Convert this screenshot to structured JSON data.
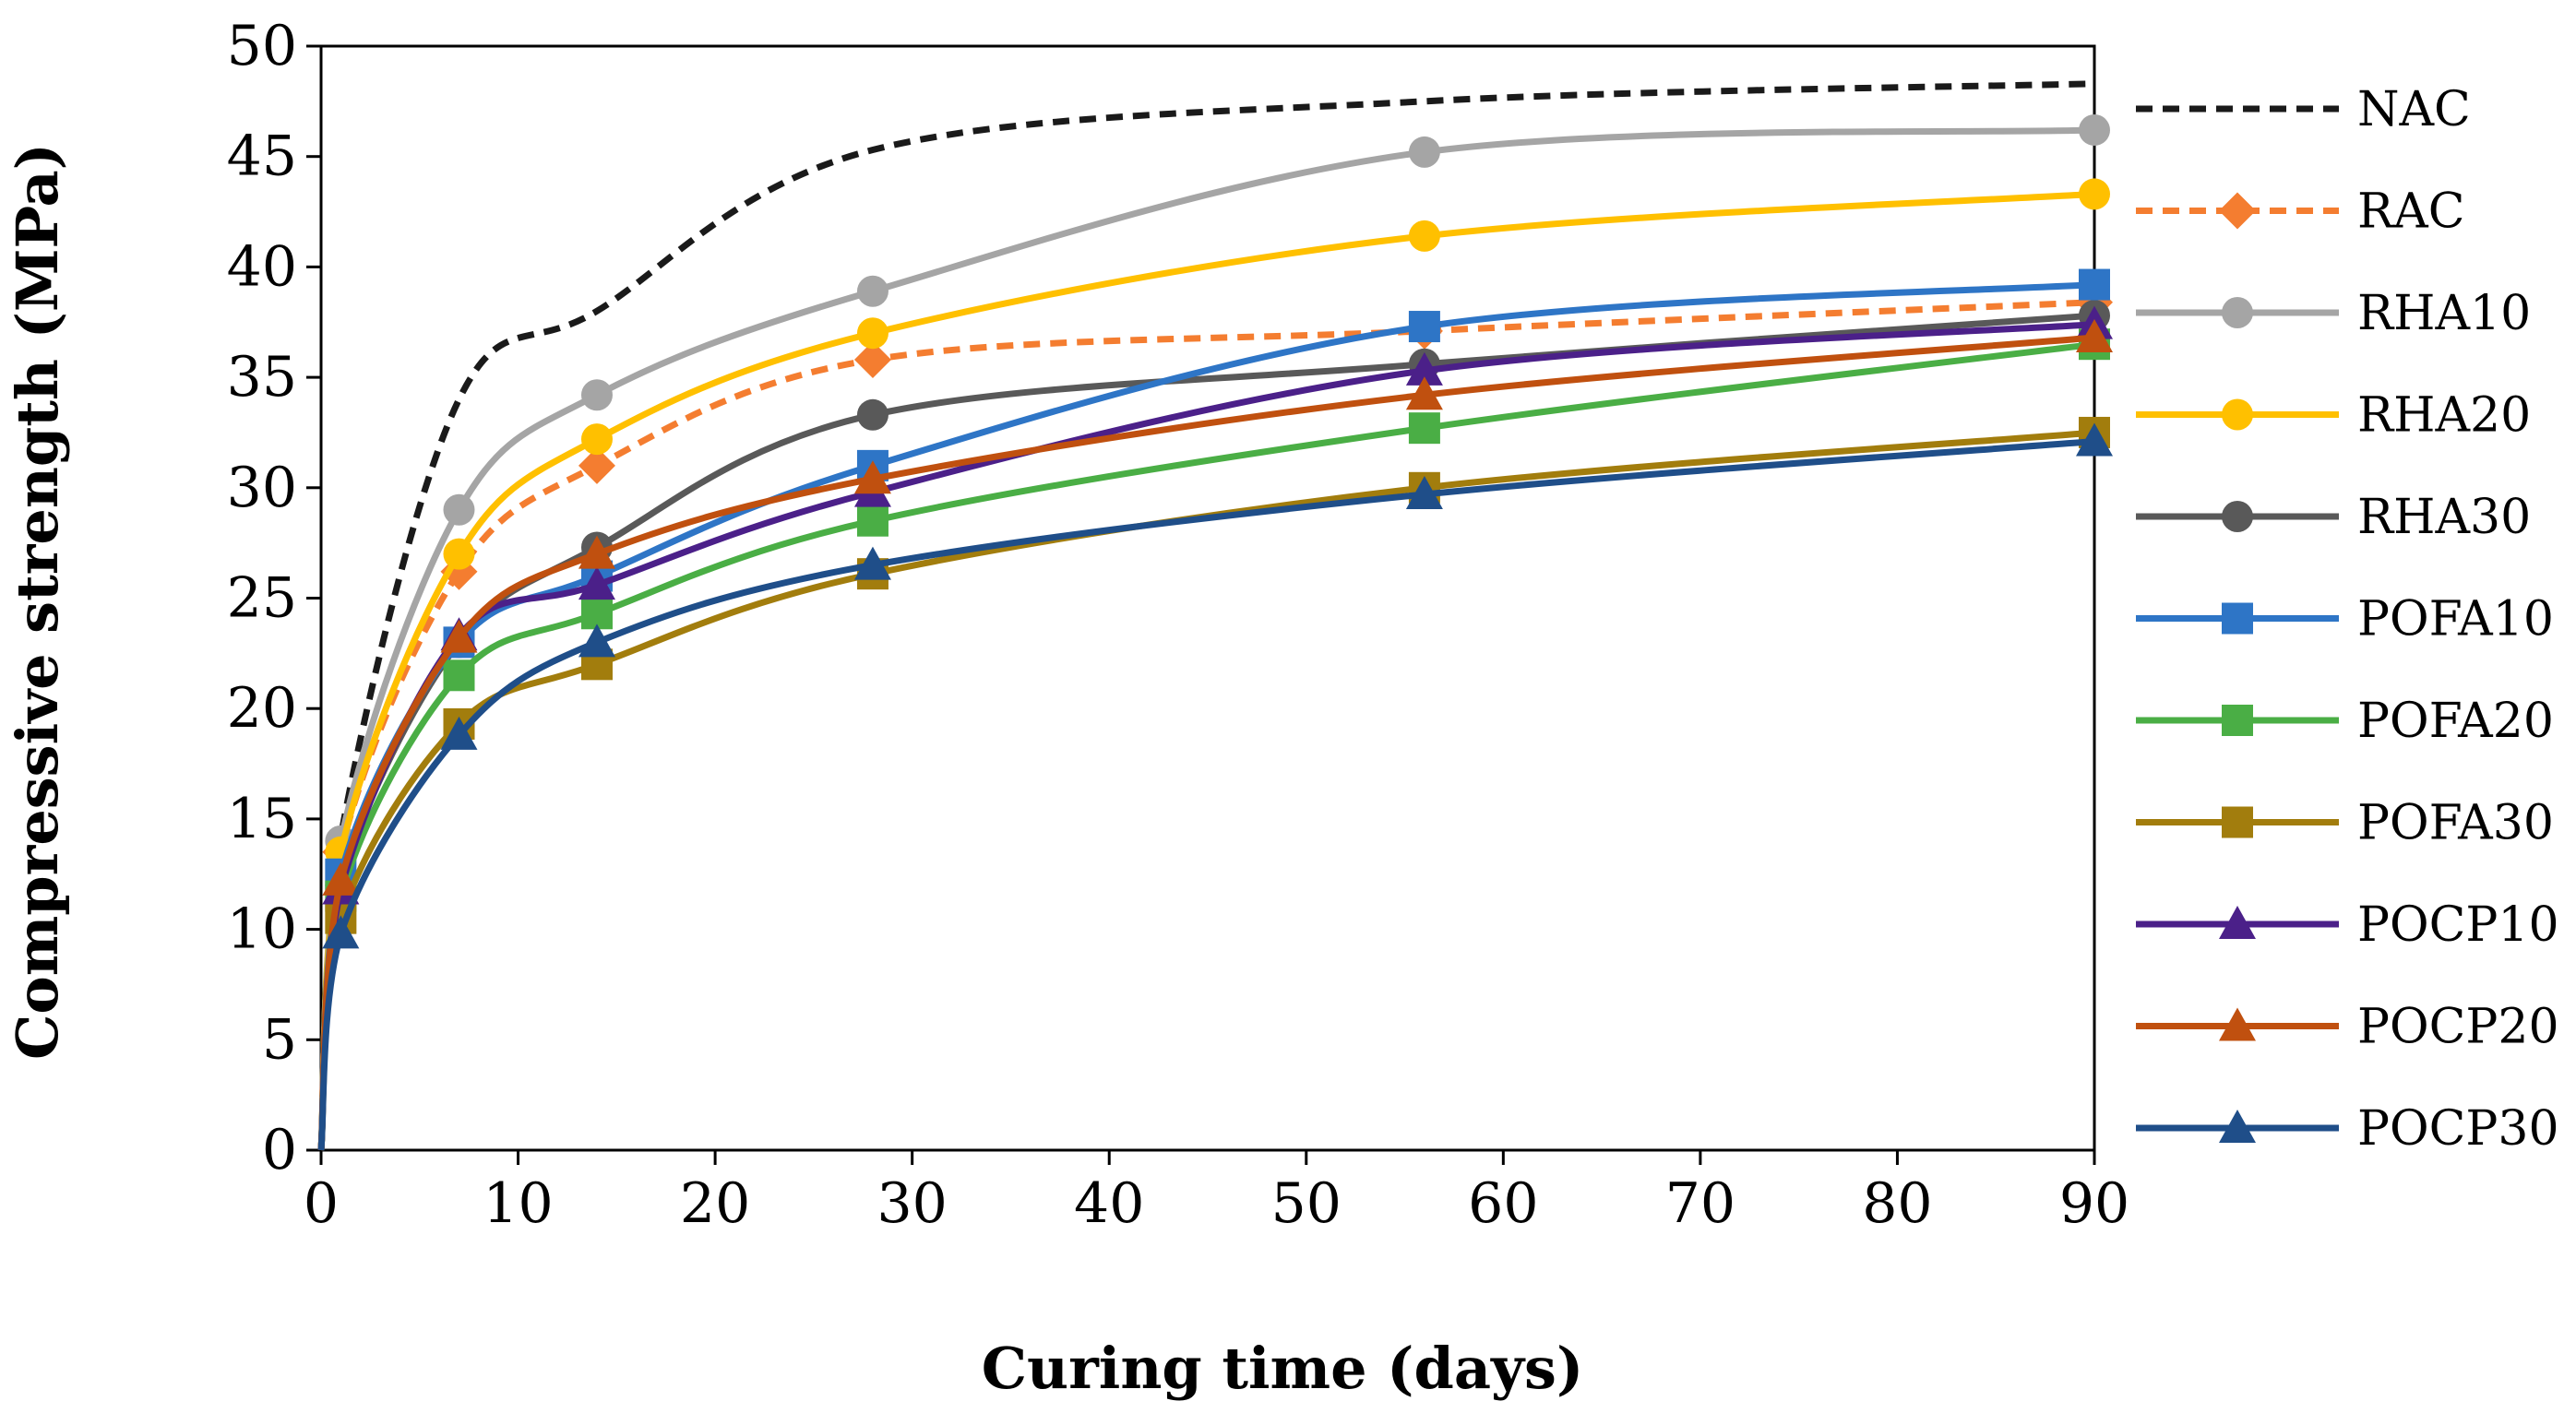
{
  "chart_data": {
    "type": "line",
    "title": "",
    "xlabel": "Curing time (days)",
    "ylabel": "Compressive strength (MPa)",
    "xlim": [
      0,
      90
    ],
    "ylim": [
      0,
      50
    ],
    "xticks": [
      0,
      10,
      20,
      30,
      40,
      50,
      60,
      70,
      80,
      90
    ],
    "yticks": [
      0,
      5,
      10,
      15,
      20,
      25,
      30,
      35,
      40,
      45,
      50
    ],
    "grid": false,
    "legend_position": "right",
    "x": [
      0,
      1,
      7,
      14,
      28,
      56,
      90
    ],
    "series": [
      {
        "name": "NAC",
        "color": "#1a1a1a",
        "dashed": true,
        "marker": "none",
        "values": [
          0,
          14.2,
          34.0,
          38.0,
          45.3,
          47.5,
          48.3
        ]
      },
      {
        "name": "RAC",
        "color": "#f47d30",
        "dashed": true,
        "marker": "diamond",
        "values": [
          0,
          13.5,
          26.2,
          31.0,
          35.8,
          37.1,
          38.4
        ]
      },
      {
        "name": "RHA10",
        "color": "#a5a5a5",
        "dashed": false,
        "marker": "circle",
        "values": [
          0,
          14.0,
          29.0,
          34.2,
          38.9,
          45.2,
          46.2
        ]
      },
      {
        "name": "RHA20",
        "color": "#ffc000",
        "dashed": false,
        "marker": "circle",
        "values": [
          0,
          13.5,
          27.0,
          32.2,
          37.0,
          41.4,
          43.3
        ]
      },
      {
        "name": "RHA30",
        "color": "#595959",
        "dashed": false,
        "marker": "circle",
        "values": [
          0,
          12.0,
          23.0,
          27.3,
          33.3,
          35.6,
          37.8
        ]
      },
      {
        "name": "POFA10",
        "color": "#2e75c6",
        "dashed": false,
        "marker": "square",
        "values": [
          0,
          12.5,
          23.0,
          26.0,
          31.0,
          37.3,
          39.2
        ]
      },
      {
        "name": "POFA20",
        "color": "#4aae45",
        "dashed": false,
        "marker": "square",
        "values": [
          0,
          11.5,
          21.5,
          24.3,
          28.5,
          32.7,
          36.5
        ]
      },
      {
        "name": "POFA30",
        "color": "#a27d0d",
        "dashed": false,
        "marker": "square",
        "values": [
          0,
          10.5,
          19.3,
          22.0,
          26.1,
          30.0,
          32.5
        ]
      },
      {
        "name": "POCP10",
        "color": "#4b2089",
        "dashed": false,
        "marker": "triangle",
        "values": [
          0,
          11.8,
          23.3,
          25.6,
          29.8,
          35.3,
          37.4
        ]
      },
      {
        "name": "POCP20",
        "color": "#c0500f",
        "dashed": false,
        "marker": "triangle",
        "values": [
          0,
          12.2,
          23.2,
          27.0,
          30.4,
          34.2,
          36.8
        ]
      },
      {
        "name": "POCP30",
        "color": "#1f4e89",
        "dashed": false,
        "marker": "triangle",
        "values": [
          0,
          9.8,
          18.8,
          23.0,
          26.5,
          29.7,
          32.1
        ]
      }
    ]
  }
}
